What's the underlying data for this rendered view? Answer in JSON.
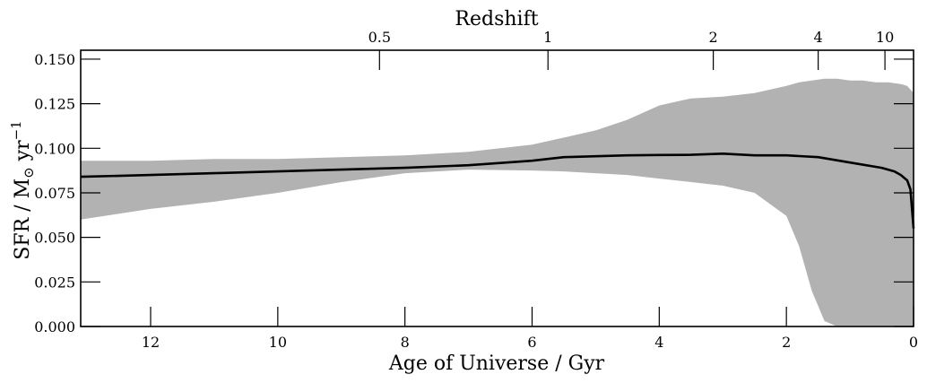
{
  "chart_data": {
    "type": "area",
    "title": "",
    "xlabel": "Age of Universe / Gyr",
    "ylabel_main": "SFR / M",
    "ylabel_sub": "⊙",
    "ylabel_unit": " yr",
    "ylabel_exp": "−1",
    "x2label": "Redshift",
    "xlim": [
      13.1,
      0
    ],
    "ylim": [
      0,
      0.155
    ],
    "grid": false,
    "colors": {
      "band": "#b2b2b2",
      "line": "#000000"
    },
    "x_ticks": [
      {
        "value": 12,
        "label": "12"
      },
      {
        "value": 10,
        "label": "10"
      },
      {
        "value": 8,
        "label": "8"
      },
      {
        "value": 6,
        "label": "6"
      },
      {
        "value": 4,
        "label": "4"
      },
      {
        "value": 2,
        "label": "2"
      },
      {
        "value": 0,
        "label": "0"
      }
    ],
    "y_ticks": [
      {
        "value": 0.0,
        "label": "0.000"
      },
      {
        "value": 0.025,
        "label": "0.025"
      },
      {
        "value": 0.05,
        "label": "0.050"
      },
      {
        "value": 0.075,
        "label": "0.075"
      },
      {
        "value": 0.1,
        "label": "0.100"
      },
      {
        "value": 0.125,
        "label": "0.125"
      },
      {
        "value": 0.15,
        "label": "0.150"
      }
    ],
    "redshift_ticks": [
      {
        "age": 8.4,
        "label": "0.5"
      },
      {
        "age": 5.75,
        "label": "1"
      },
      {
        "age": 3.15,
        "label": "2"
      },
      {
        "age": 1.5,
        "label": "4"
      },
      {
        "age": 0.45,
        "label": "10"
      }
    ],
    "median": {
      "x": [
        13.1,
        12,
        11,
        10,
        9,
        8,
        7,
        6,
        5.5,
        5,
        4.5,
        4,
        3.5,
        3,
        2.5,
        2,
        1.5,
        1.0,
        0.5,
        0.3,
        0.2,
        0.1,
        0.05,
        0.0
      ],
      "y": [
        0.084,
        0.085,
        0.086,
        0.087,
        0.088,
        0.089,
        0.0905,
        0.093,
        0.095,
        0.0955,
        0.096,
        0.0962,
        0.0963,
        0.097,
        0.096,
        0.096,
        0.095,
        0.092,
        0.089,
        0.087,
        0.085,
        0.082,
        0.077,
        0.055
      ]
    },
    "band": {
      "x": [
        13.1,
        12,
        11,
        10,
        9,
        8,
        7,
        6,
        5.5,
        5,
        4.5,
        4,
        3.5,
        3,
        2.5,
        2,
        1.8,
        1.6,
        1.4,
        1.2,
        1.0,
        0.8,
        0.6,
        0.4,
        0.2,
        0.1,
        0.0
      ],
      "upper": [
        0.093,
        0.093,
        0.094,
        0.094,
        0.095,
        0.096,
        0.098,
        0.102,
        0.106,
        0.11,
        0.116,
        0.124,
        0.128,
        0.129,
        0.131,
        0.135,
        0.137,
        0.138,
        0.139,
        0.139,
        0.138,
        0.138,
        0.137,
        0.137,
        0.136,
        0.135,
        0.131
      ],
      "lower": [
        0.06,
        0.066,
        0.07,
        0.075,
        0.081,
        0.086,
        0.088,
        0.0875,
        0.087,
        0.086,
        0.085,
        0.083,
        0.081,
        0.079,
        0.075,
        0.062,
        0.045,
        0.02,
        0.003,
        0.0,
        0.0,
        0.0,
        0.0,
        0.0,
        0.0,
        0.0,
        0.0
      ]
    }
  }
}
